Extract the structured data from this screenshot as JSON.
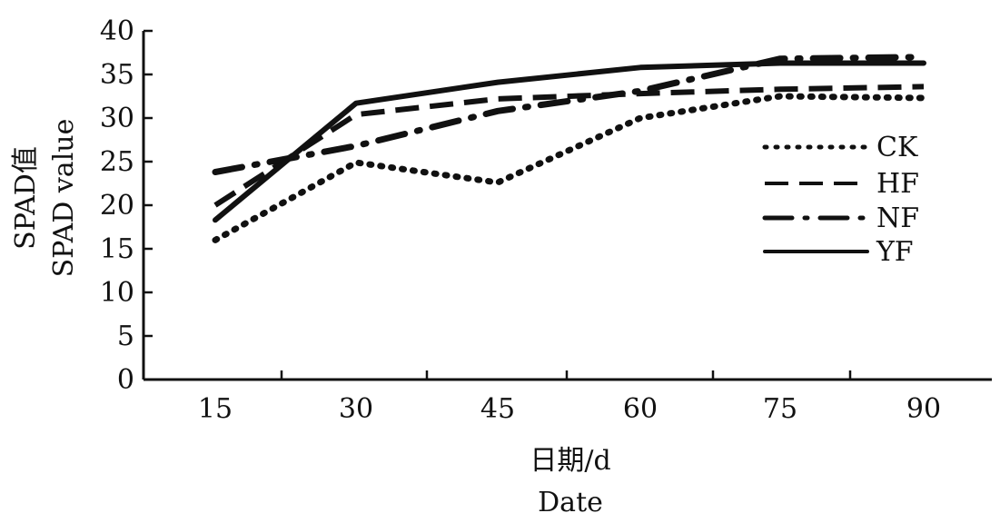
{
  "chart_data": {
    "type": "line",
    "x": [
      15,
      30,
      45,
      60,
      75,
      90
    ],
    "x_tick_labels": [
      "15",
      "30",
      "45",
      "60",
      "75",
      "90"
    ],
    "y_tick_labels": [
      "0",
      "5",
      "10",
      "15",
      "20",
      "25",
      "30",
      "35",
      "40"
    ],
    "ylim": [
      0,
      40
    ],
    "xlabel_cn": "日期/d",
    "xlabel_en": "Date",
    "ylabel_cn": "SPAD值",
    "ylabel_en": "SPAD value",
    "grid": false,
    "legend_position": "right",
    "series": [
      {
        "name": "CK",
        "style": "dotted",
        "values": [
          16.0,
          24.9,
          22.6,
          30.0,
          32.5,
          32.3
        ]
      },
      {
        "name": "HF",
        "style": "dashed",
        "values": [
          20.0,
          30.4,
          32.2,
          32.8,
          33.3,
          33.6
        ]
      },
      {
        "name": "NF",
        "style": "dashdot",
        "values": [
          23.8,
          26.8,
          30.8,
          33.1,
          36.8,
          37.0
        ]
      },
      {
        "name": "YF",
        "style": "solid",
        "values": [
          18.3,
          31.7,
          34.1,
          35.8,
          36.3,
          36.3
        ]
      }
    ],
    "line_color": "#111111"
  }
}
